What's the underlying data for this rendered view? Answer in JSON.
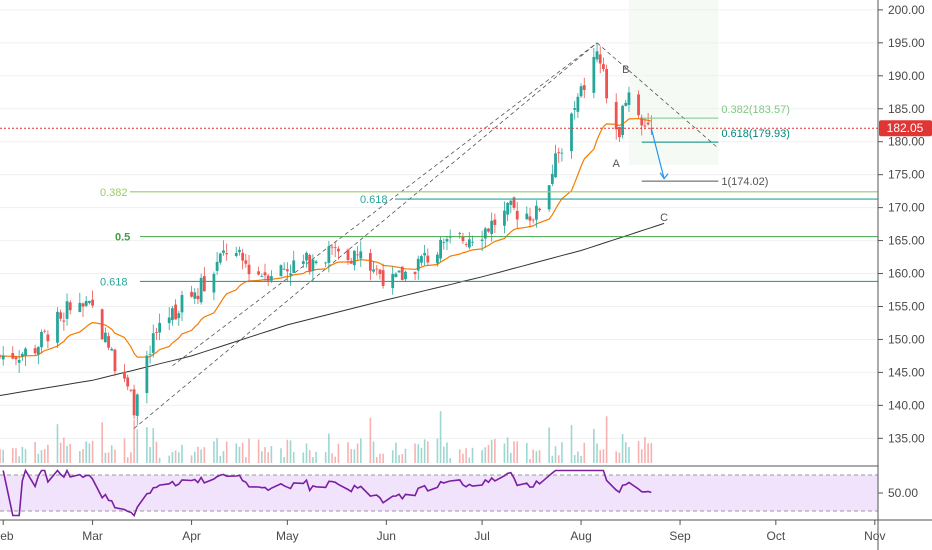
{
  "chart_data": {
    "type": "candlestick",
    "price_axis": {
      "ticks": [
        "200.00",
        "195.00",
        "190.00",
        "185.00",
        "180.00",
        "175.00",
        "170.00",
        "165.00",
        "160.00",
        "155.00",
        "150.00",
        "145.00",
        "140.00",
        "135.00"
      ],
      "values": [
        200,
        195,
        190,
        185,
        180,
        175,
        170,
        165,
        160,
        155,
        150,
        145,
        140,
        135
      ],
      "range": [
        130.8,
        201.5
      ]
    },
    "rsi_axis": {
      "ticks": [
        "50.00"
      ],
      "values": [
        50
      ],
      "range": [
        20,
        80
      ],
      "band": [
        30,
        70
      ]
    },
    "x_axis": {
      "ticks": [
        "Feb",
        "Mar",
        "Apr",
        "May",
        "Jun",
        "Jul",
        "Aug",
        "Sep",
        "Oct",
        "Nov"
      ],
      "range": [
        "2019-01-31",
        "2019-11-02"
      ]
    },
    "current_price": {
      "label": "182.05",
      "value": 182.05,
      "color": "#e03535"
    },
    "colors": {
      "up": "#26a69a",
      "down": "#ef5350",
      "ema": "#f57c00",
      "sma": "#333333",
      "rsi": "#7b1fa2",
      "rsi_band": "#f1e3fb",
      "fib_green": "#66bb6a",
      "fib_lime": "#9ccc65",
      "fib_teal": "#4db6ac"
    },
    "fib_retracement": [
      {
        "label": "0.382",
        "value": 172.4,
        "color": "#9ccc65"
      },
      {
        "label": "0.618",
        "value": 171.3,
        "color": "#26a69a"
      },
      {
        "label": "0.5",
        "value": 165.6,
        "color": "#43a047"
      },
      {
        "label": "0.618",
        "value": 158.8,
        "color": "#26a69a"
      }
    ],
    "fib_extension": [
      {
        "label": "0.382(183.57)",
        "value": 183.57,
        "color": "#81c784"
      },
      {
        "label": "0.618(179.93)",
        "value": 179.93,
        "color": "#00897b"
      },
      {
        "label": "1(174.02)",
        "value": 174.02,
        "color": "#555555"
      }
    ],
    "waves": [
      {
        "label": "A",
        "date": "2019-08-12",
        "value": 178.3
      },
      {
        "label": "B",
        "date": "2019-08-15",
        "value": 189.8
      },
      {
        "label": "C",
        "date": "2019-08-27",
        "value": 170.1
      }
    ],
    "fan_lines": [
      {
        "from": [
          "2019-03-14",
          136.5
        ],
        "to": [
          "2019-08-06",
          195.0
        ]
      },
      {
        "from": [
          "2019-03-26",
          146.0
        ],
        "to": [
          "2019-08-06",
          195.0
        ]
      },
      {
        "from": [
          "2019-08-06",
          195.0
        ],
        "to": [
          "2019-09-13",
          179.0
        ]
      }
    ],
    "projection_arrow": {
      "from": [
        "2019-08-23",
        182.0
      ],
      "to": [
        "2019-08-27",
        174.4
      ]
    },
    "ohlc_monthly_anchors": [
      {
        "date": "2019-01-31",
        "close": 147.5
      },
      {
        "date": "2019-02-10",
        "close": 148.2
      },
      {
        "date": "2019-02-22",
        "close": 155.0
      },
      {
        "date": "2019-03-01",
        "close": 154.5
      },
      {
        "date": "2019-03-08",
        "close": 146.5
      },
      {
        "date": "2019-03-14",
        "close": 140.0
      },
      {
        "date": "2019-03-22",
        "close": 152.5
      },
      {
        "date": "2019-03-28",
        "close": 155.0
      },
      {
        "date": "2019-04-05",
        "close": 158.5
      },
      {
        "date": "2019-04-12",
        "close": 163.5
      },
      {
        "date": "2019-04-22",
        "close": 160.0
      },
      {
        "date": "2019-05-06",
        "close": 161.5
      },
      {
        "date": "2019-05-16",
        "close": 163.5
      },
      {
        "date": "2019-05-24",
        "close": 162.5
      },
      {
        "date": "2019-06-03",
        "close": 158.5
      },
      {
        "date": "2019-06-12",
        "close": 162.0
      },
      {
        "date": "2019-06-21",
        "close": 164.5
      },
      {
        "date": "2019-07-01",
        "close": 166.5
      },
      {
        "date": "2019-07-10",
        "close": 169.5
      },
      {
        "date": "2019-07-18",
        "close": 169.0
      },
      {
        "date": "2019-07-25",
        "close": 178.0
      },
      {
        "date": "2019-07-31",
        "close": 186.0
      },
      {
        "date": "2019-08-06",
        "close": 193.5
      },
      {
        "date": "2019-08-08",
        "close": 190.0
      },
      {
        "date": "2019-08-12",
        "close": 180.5
      },
      {
        "date": "2019-08-16",
        "close": 187.5
      },
      {
        "date": "2019-08-20",
        "close": 184.0
      },
      {
        "date": "2019-08-23",
        "close": 182.05
      }
    ]
  }
}
